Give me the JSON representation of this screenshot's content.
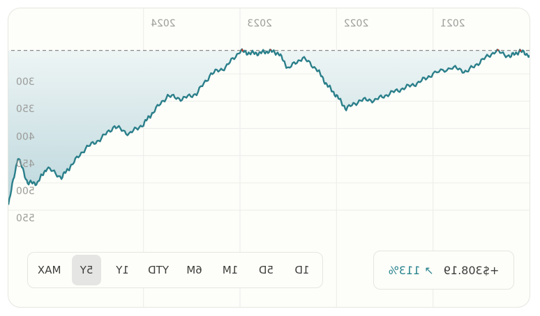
{
  "chart_data": {
    "type": "area",
    "x_tick_labels": [
      "2021",
      "2022",
      "2023",
      "2024"
    ],
    "y_tick_labels": [
      "300",
      "350",
      "400",
      "450",
      "500",
      "550"
    ],
    "ylim": [
      250,
      550
    ],
    "reference_line": {
      "style": "dashed",
      "value": 257
    },
    "series": [
      {
        "line_color": "#2a7f8a",
        "peak_marker_color": "#c0392b",
        "x": [
          2020.0,
          2020.1,
          2020.2,
          2020.35,
          2020.5,
          2020.65,
          2020.8,
          2021.0,
          2021.15,
          2021.3,
          2021.45,
          2021.6,
          2021.75,
          2021.9,
          2022.0,
          2022.1,
          2022.2,
          2022.35,
          2022.5,
          2022.6,
          2022.7,
          2022.8,
          2022.9,
          2023.0,
          2023.15,
          2023.3,
          2023.45,
          2023.6,
          2023.75,
          2023.9,
          2024.0,
          2024.15,
          2024.3,
          2024.45,
          2024.6,
          2024.75,
          2024.85,
          2025.0,
          2025.1,
          2025.2,
          2025.3,
          2025.4
        ],
        "y": [
          266,
          258,
          268,
          258,
          276,
          296,
          288,
          300,
          316,
          326,
          336,
          348,
          348,
          364,
          340,
          320,
          292,
          270,
          290,
          262,
          258,
          262,
          262,
          258,
          288,
          300,
          336,
          346,
          340,
          370,
          392,
          410,
          396,
          420,
          436,
          468,
          490,
          472,
          500,
          500,
          452,
          540
        ]
      }
    ]
  },
  "range_selector": {
    "options": [
      "1D",
      "5D",
      "1M",
      "6M",
      "YTD",
      "1Y",
      "5Y",
      "MAX"
    ],
    "selected": "5Y"
  },
  "summary": {
    "change_abs": "+$308.19",
    "change_pct": "113%",
    "direction": "up",
    "accent_color": "#2a8590"
  }
}
